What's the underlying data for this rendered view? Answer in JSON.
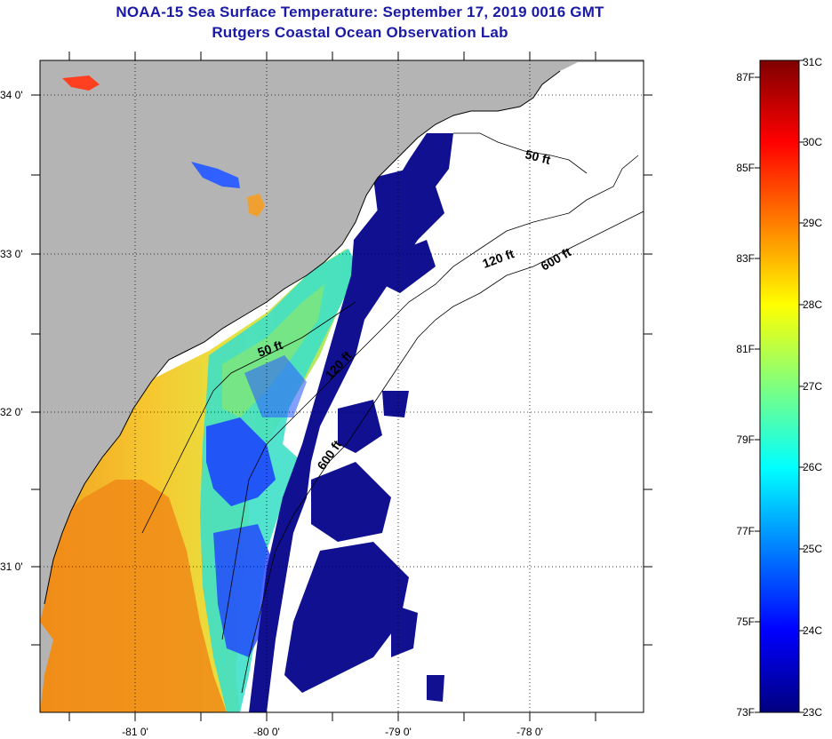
{
  "title": "NOAA-15 Sea Surface Temperature:  September 17, 2019 0016 GMT",
  "subtitle": "Rutgers Coastal Ocean Observation Lab",
  "map": {
    "lon_ticks": [
      "-81 0'",
      "-80 0'",
      "-79 0'",
      "-78 0'"
    ],
    "lat_ticks": [
      "34 0'",
      "33 0'",
      "32 0'",
      "31 0'"
    ],
    "isobath_labels": [
      "50 ft",
      "120 ft",
      "600 ft",
      "50 ft",
      "120 ft",
      "600 ft"
    ],
    "colors": {
      "land": "#b4b4b4",
      "cloud": "#ffffff",
      "frame": "#000000"
    }
  },
  "colorbar": {
    "celsius_labels": [
      "31C",
      "30C",
      "29C",
      "28C",
      "27C",
      "26C",
      "25C",
      "24C",
      "23C"
    ],
    "fahrenheit_labels": [
      "87F",
      "85F",
      "83F",
      "81F",
      "79F",
      "77F",
      "75F",
      "73F"
    ],
    "range_c": [
      23,
      31
    ],
    "colors": [
      "#00007f",
      "#0000ff",
      "#007fff",
      "#00ffff",
      "#7fff7f",
      "#ffff00",
      "#ff7f00",
      "#ff0000",
      "#7f0000"
    ]
  }
}
